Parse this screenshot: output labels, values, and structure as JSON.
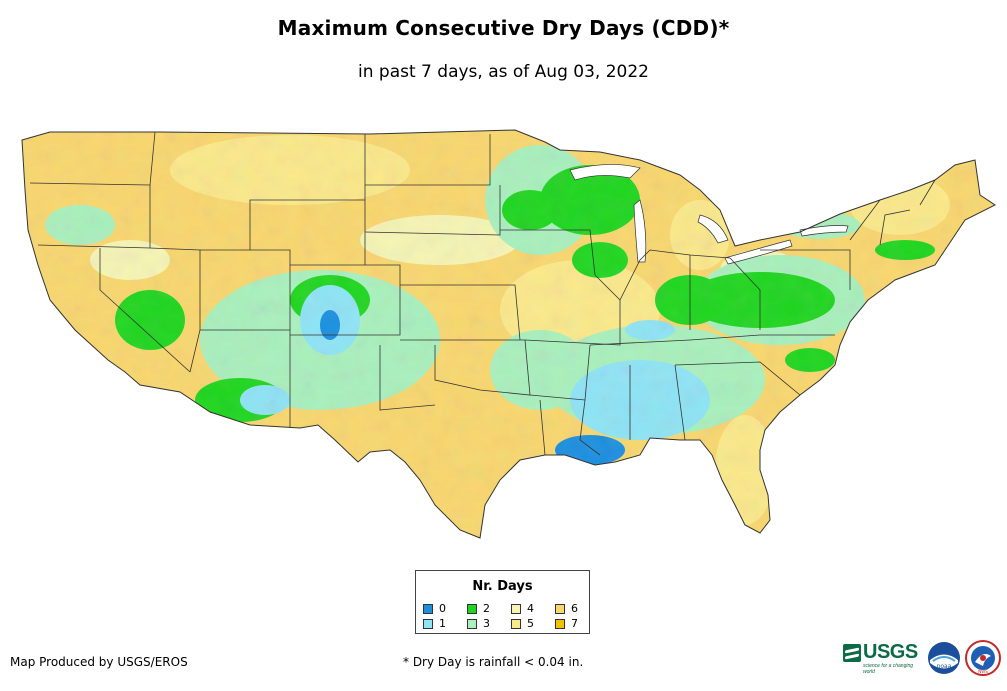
{
  "title": "Maximum Consecutive Dry Days (CDD)*",
  "subtitle": "in past 7 days, as of Aug 03, 2022",
  "legend": {
    "title": "Nr. Days",
    "items": [
      {
        "label": "0",
        "color": "#1a8fe0"
      },
      {
        "label": "1",
        "color": "#8ee4f5"
      },
      {
        "label": "2",
        "color": "#1ed61e"
      },
      {
        "label": "3",
        "color": "#a9f0bd"
      },
      {
        "label": "4",
        "color": "#f6f5b4"
      },
      {
        "label": "5",
        "color": "#fbe98a"
      },
      {
        "label": "6",
        "color": "#f9d76e"
      },
      {
        "label": "7",
        "color": "#f5c100"
      }
    ]
  },
  "credit": "Map Produced by USGS/EROS",
  "footnote": "* Dry Day is rainfall < 0.04 in.",
  "logos": {
    "usgs": "USGS",
    "usgs_tagline": "science for a changing world",
    "noaa": "noaa",
    "nws": "NWS"
  },
  "colors": {
    "state_border": "#333333",
    "water": "#ffffff"
  }
}
